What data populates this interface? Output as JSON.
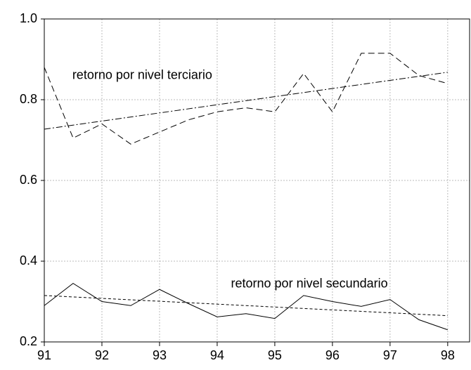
{
  "chart_data": {
    "type": "line",
    "x": [
      91,
      91.5,
      92,
      92.5,
      93,
      93.5,
      94,
      94.5,
      95,
      95.5,
      96,
      96.5,
      97,
      97.5,
      98
    ],
    "series": [
      {
        "color": "#000000",
        "dash": "9,5",
        "values": [
          0.88,
          0.705,
          0.74,
          0.69,
          0.72,
          0.75,
          0.77,
          0.78,
          0.77,
          0.865,
          0.77,
          0.915,
          0.915,
          0.86,
          0.84
        ]
      },
      {
        "color": "#000000",
        "dash": "9,3,2,3",
        "x": [
          91,
          98
        ],
        "values": [
          0.727,
          0.868
        ]
      },
      {
        "color": "#000000",
        "dash": "none",
        "values": [
          0.29,
          0.345,
          0.3,
          0.29,
          0.33,
          0.295,
          0.262,
          0.27,
          0.258,
          0.315,
          0.3,
          0.288,
          0.305,
          0.255,
          0.23
        ]
      },
      {
        "color": "#000000",
        "dash": "4,3",
        "x": [
          91,
          98
        ],
        "values": [
          0.315,
          0.265
        ]
      }
    ],
    "annotations": [
      {
        "text": "retorno por nivel terciario",
        "x": 92.7,
        "y": 0.86
      },
      {
        "text": "retorno por nivel secundario",
        "x": 95.6,
        "y": 0.343
      }
    ],
    "xlim": [
      91,
      98.38
    ],
    "xticks": [
      91,
      92,
      93,
      94,
      95,
      96,
      97,
      98
    ],
    "ylim": [
      0.2,
      1.0
    ],
    "yticks": [
      {
        "value": 0.2,
        "label": "0.2"
      },
      {
        "value": 0.4,
        "label": "0.4"
      },
      {
        "value": 0.6,
        "label": "0.6"
      },
      {
        "value": 0.8,
        "label": "0.8"
      },
      {
        "value": 1.0,
        "label": "1.0"
      }
    ],
    "grid": true
  }
}
